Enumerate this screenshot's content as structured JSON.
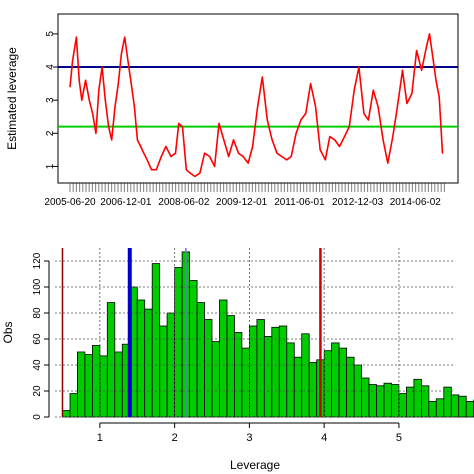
{
  "chart_data": [
    {
      "type": "line",
      "ylabel": "Estimated leverage",
      "xlabel": "",
      "x_tick_labels": [
        "2005-06-20",
        "2006-12-01",
        "2008-06-02",
        "2009-12-01",
        "2011-06-01",
        "2012-12-03",
        "2014-06-02"
      ],
      "x_tick_dates": [
        "2005-06-20",
        "2006-12-01",
        "2008-06-02",
        "2009-12-01",
        "2011-06-01",
        "2012-12-03",
        "2014-06-02"
      ],
      "xlim": [
        "2005-06-20",
        "2015-03-01"
      ],
      "ylim": [
        0.5,
        5.6
      ],
      "y_ticks": [
        1,
        2,
        3,
        4,
        5
      ],
      "grid": false,
      "series": [
        {
          "color": "#ff0000",
          "x": [
            "2005-06-20",
            "2005-07-15",
            "2005-08-20",
            "2005-09-15",
            "2005-10-10",
            "2005-11-15",
            "2005-12-20",
            "2006-01-20",
            "2006-02-20",
            "2006-03-20",
            "2006-04-20",
            "2006-05-20",
            "2006-06-20",
            "2006-07-20",
            "2006-08-20",
            "2006-09-20",
            "2006-10-20",
            "2006-11-20",
            "2006-12-20",
            "2007-01-20",
            "2007-02-20",
            "2007-03-20",
            "2007-04-20",
            "2007-05-20",
            "2007-06-20",
            "2007-08-01",
            "2007-09-15",
            "2007-11-01",
            "2007-12-15",
            "2008-02-01",
            "2008-03-15",
            "2008-04-15",
            "2008-05-20",
            "2008-06-25",
            "2008-08-01",
            "2008-09-15",
            "2008-11-01",
            "2008-12-15",
            "2009-02-01",
            "2009-03-20",
            "2009-05-01",
            "2009-06-15",
            "2009-08-01",
            "2009-09-15",
            "2009-11-01",
            "2009-12-15",
            "2010-02-01",
            "2010-03-15",
            "2010-05-01",
            "2010-06-15",
            "2010-08-01",
            "2010-09-15",
            "2010-11-01",
            "2010-12-15",
            "2011-02-01",
            "2011-03-15",
            "2011-05-01",
            "2011-06-15",
            "2011-08-01",
            "2011-09-15",
            "2011-11-01",
            "2011-12-15",
            "2012-02-01",
            "2012-03-15",
            "2012-05-01",
            "2012-06-15",
            "2012-08-01",
            "2012-09-15",
            "2012-11-01",
            "2012-12-15",
            "2013-02-01",
            "2013-03-15",
            "2013-05-01",
            "2013-06-15",
            "2013-08-01",
            "2013-09-15",
            "2013-11-01",
            "2013-12-15",
            "2014-02-01",
            "2014-03-15",
            "2014-05-01",
            "2014-06-15",
            "2014-08-01",
            "2014-09-15",
            "2014-10-15",
            "2014-11-15",
            "2014-12-15",
            "2015-01-15",
            "2015-02-15"
          ],
          "y": [
            3.4,
            4.2,
            4.9,
            3.6,
            3.0,
            3.6,
            3.0,
            2.6,
            2.0,
            3.3,
            4.0,
            3.0,
            2.2,
            1.8,
            2.8,
            3.5,
            4.4,
            4.9,
            4.2,
            3.5,
            2.8,
            1.8,
            1.6,
            1.4,
            1.2,
            0.9,
            0.9,
            1.3,
            1.6,
            1.3,
            1.4,
            2.3,
            2.2,
            0.9,
            0.8,
            0.7,
            0.8,
            1.4,
            1.3,
            1.0,
            2.3,
            1.8,
            1.3,
            1.8,
            1.4,
            1.3,
            1.1,
            1.6,
            2.8,
            3.7,
            2.4,
            1.8,
            1.4,
            1.3,
            1.2,
            1.3,
            2.0,
            2.4,
            2.6,
            3.5,
            2.8,
            1.5,
            1.2,
            1.9,
            1.8,
            1.6,
            1.9,
            2.2,
            3.3,
            4.0,
            2.6,
            2.4,
            3.3,
            2.8,
            1.8,
            1.1,
            1.9,
            2.8,
            3.9,
            2.9,
            3.2,
            4.5,
            3.9,
            4.6,
            5.0,
            4.3,
            3.6,
            3.1,
            1.4
          ]
        }
      ],
      "hlines": [
        {
          "y": 4.0,
          "color": "#00008b"
        },
        {
          "y": 2.2,
          "color": "#00cc00"
        }
      ]
    },
    {
      "type": "bar",
      "xlabel": "Leverage",
      "ylabel": "Obs",
      "xlim": [
        0.4,
        5.75
      ],
      "ylim": [
        0,
        130
      ],
      "x_ticks": [
        1,
        2,
        3,
        4,
        5
      ],
      "y_ticks": [
        0,
        20,
        40,
        60,
        80,
        100,
        120
      ],
      "grid": true,
      "bar_color": "#00cc00",
      "bin_width": 0.1,
      "bin_start": 0.5,
      "values": [
        5,
        18,
        50,
        48,
        55,
        47,
        88,
        50,
        56,
        100,
        90,
        83,
        118,
        70,
        80,
        115,
        127,
        105,
        88,
        75,
        58,
        90,
        78,
        65,
        53,
        70,
        75,
        62,
        69,
        70,
        57,
        46,
        64,
        42,
        44,
        51,
        57,
        53,
        46,
        40,
        30,
        25,
        24,
        26,
        25,
        18,
        23,
        29,
        24,
        12,
        14,
        23,
        17,
        16,
        12,
        13,
        11,
        5,
        1,
        0,
        1,
        0,
        1,
        1
      ],
      "vlines": [
        {
          "x": 1.4,
          "color": "#0000cd",
          "width": 4
        },
        {
          "x": 2.15,
          "color": "#7b68ee",
          "width": 1.5
        },
        {
          "x": 3.95,
          "color": "#cc0000",
          "width": 2.5
        },
        {
          "x": 0.5,
          "color": "#8b0000",
          "width": 1.5
        }
      ]
    }
  ]
}
